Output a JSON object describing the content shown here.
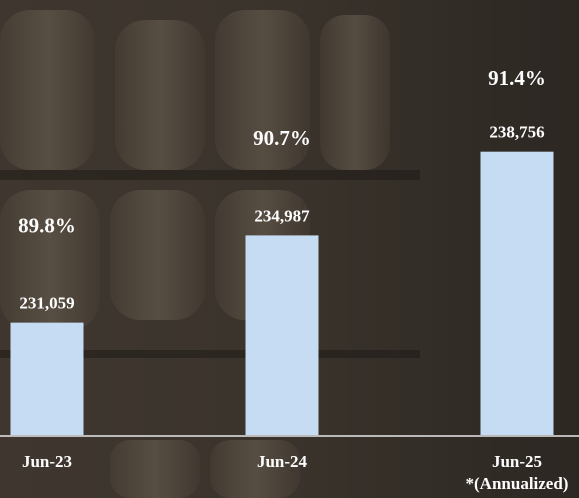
{
  "chart_data": {
    "type": "bar",
    "categories": [
      "Jun-23",
      "Jun-24",
      "Jun-25\n*(Annualized)"
    ],
    "values": [
      231059,
      234987,
      238756
    ],
    "value_labels": [
      "231,059",
      "234,987",
      "238,756"
    ],
    "annotations": [
      "89.8%",
      "90.7%",
      "91.4%"
    ],
    "color": "#c5dcf2",
    "ylim": [
      226000,
      245000
    ]
  }
}
